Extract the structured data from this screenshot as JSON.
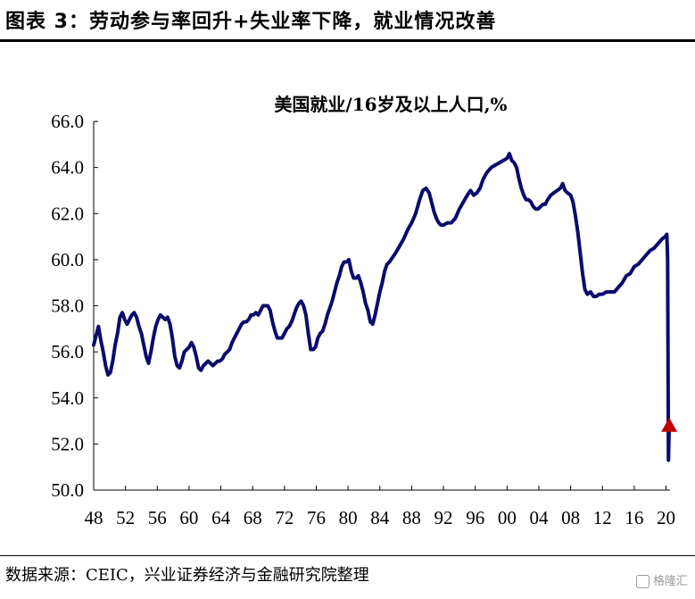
{
  "header": {
    "title": "图表 3：劳动参与率回升+失业率下降，就业情况改善"
  },
  "footer": {
    "source": "数据来源：CEIC，兴业证券经济与金融研究院整理",
    "watermark": "格隆汇"
  },
  "colors": {
    "line": "#0b0b6e",
    "marker": "#c00000"
  },
  "chart_data": {
    "type": "line",
    "title": "美国就业/16岁及以上人口,%",
    "xlabel": "",
    "ylabel": "",
    "x_tick_labels": [
      "48",
      "52",
      "56",
      "60",
      "64",
      "68",
      "72",
      "76",
      "80",
      "84",
      "88",
      "92",
      "96",
      "00",
      "04",
      "08",
      "12",
      "16",
      "20"
    ],
    "x_tick_years": [
      1948,
      1952,
      1956,
      1960,
      1964,
      1968,
      1972,
      1976,
      1980,
      1984,
      1988,
      1992,
      1996,
      2000,
      2004,
      2008,
      2012,
      2016,
      2020
    ],
    "xlim": [
      1948,
      2020.5
    ],
    "y_tick_labels": [
      "50.0",
      "52.0",
      "54.0",
      "56.0",
      "58.0",
      "60.0",
      "62.0",
      "64.0",
      "66.0"
    ],
    "ylim": [
      50,
      66
    ],
    "grid": false,
    "series": [
      {
        "points": [
          [
            1948.0,
            56.3
          ],
          [
            1948.3,
            56.7
          ],
          [
            1948.6,
            57.1
          ],
          [
            1948.9,
            56.5
          ],
          [
            1949.2,
            56.0
          ],
          [
            1949.5,
            55.4
          ],
          [
            1949.8,
            55.0
          ],
          [
            1950.1,
            55.1
          ],
          [
            1950.4,
            55.6
          ],
          [
            1950.7,
            56.3
          ],
          [
            1951.0,
            56.8
          ],
          [
            1951.3,
            57.5
          ],
          [
            1951.6,
            57.7
          ],
          [
            1951.9,
            57.4
          ],
          [
            1952.2,
            57.2
          ],
          [
            1952.5,
            57.4
          ],
          [
            1952.8,
            57.6
          ],
          [
            1953.1,
            57.7
          ],
          [
            1953.4,
            57.5
          ],
          [
            1953.7,
            57.1
          ],
          [
            1954.0,
            56.8
          ],
          [
            1954.3,
            56.3
          ],
          [
            1954.6,
            55.8
          ],
          [
            1954.9,
            55.5
          ],
          [
            1955.2,
            56.0
          ],
          [
            1955.5,
            56.6
          ],
          [
            1955.8,
            57.1
          ],
          [
            1956.1,
            57.4
          ],
          [
            1956.4,
            57.6
          ],
          [
            1956.7,
            57.5
          ],
          [
            1957.0,
            57.4
          ],
          [
            1957.3,
            57.5
          ],
          [
            1957.6,
            57.2
          ],
          [
            1957.9,
            56.6
          ],
          [
            1958.2,
            55.8
          ],
          [
            1958.5,
            55.4
          ],
          [
            1958.8,
            55.3
          ],
          [
            1959.1,
            55.6
          ],
          [
            1959.4,
            56.0
          ],
          [
            1959.7,
            56.1
          ],
          [
            1960.0,
            56.2
          ],
          [
            1960.3,
            56.4
          ],
          [
            1960.6,
            56.2
          ],
          [
            1960.9,
            55.8
          ],
          [
            1961.2,
            55.3
          ],
          [
            1961.5,
            55.2
          ],
          [
            1961.8,
            55.4
          ],
          [
            1962.1,
            55.5
          ],
          [
            1962.4,
            55.6
          ],
          [
            1962.7,
            55.5
          ],
          [
            1963.0,
            55.4
          ],
          [
            1963.3,
            55.5
          ],
          [
            1963.6,
            55.6
          ],
          [
            1963.9,
            55.6
          ],
          [
            1964.2,
            55.7
          ],
          [
            1964.5,
            55.9
          ],
          [
            1964.8,
            56.0
          ],
          [
            1965.1,
            56.1
          ],
          [
            1965.4,
            56.4
          ],
          [
            1965.7,
            56.6
          ],
          [
            1966.0,
            56.8
          ],
          [
            1966.3,
            57.0
          ],
          [
            1966.6,
            57.2
          ],
          [
            1966.9,
            57.3
          ],
          [
            1967.2,
            57.3
          ],
          [
            1967.5,
            57.4
          ],
          [
            1967.8,
            57.6
          ],
          [
            1968.1,
            57.6
          ],
          [
            1968.4,
            57.7
          ],
          [
            1968.7,
            57.6
          ],
          [
            1969.0,
            57.8
          ],
          [
            1969.3,
            58.0
          ],
          [
            1969.6,
            58.0
          ],
          [
            1969.9,
            58.0
          ],
          [
            1970.2,
            57.8
          ],
          [
            1970.5,
            57.3
          ],
          [
            1970.8,
            56.9
          ],
          [
            1971.1,
            56.6
          ],
          [
            1971.4,
            56.6
          ],
          [
            1971.7,
            56.6
          ],
          [
            1972.0,
            56.8
          ],
          [
            1972.3,
            57.0
          ],
          [
            1972.6,
            57.1
          ],
          [
            1972.9,
            57.3
          ],
          [
            1973.2,
            57.6
          ],
          [
            1973.5,
            57.9
          ],
          [
            1973.8,
            58.1
          ],
          [
            1974.1,
            58.2
          ],
          [
            1974.4,
            58.0
          ],
          [
            1974.7,
            57.6
          ],
          [
            1975.0,
            56.8
          ],
          [
            1975.3,
            56.1
          ],
          [
            1975.6,
            56.1
          ],
          [
            1975.9,
            56.2
          ],
          [
            1976.2,
            56.6
          ],
          [
            1976.5,
            56.8
          ],
          [
            1976.8,
            56.9
          ],
          [
            1977.1,
            57.2
          ],
          [
            1977.4,
            57.6
          ],
          [
            1977.7,
            57.9
          ],
          [
            1978.0,
            58.2
          ],
          [
            1978.3,
            58.6
          ],
          [
            1978.6,
            59.0
          ],
          [
            1978.9,
            59.3
          ],
          [
            1979.2,
            59.7
          ],
          [
            1979.5,
            59.9
          ],
          [
            1979.8,
            59.9
          ],
          [
            1980.1,
            60.0
          ],
          [
            1980.4,
            59.5
          ],
          [
            1980.7,
            59.2
          ],
          [
            1981.0,
            59.2
          ],
          [
            1981.3,
            59.3
          ],
          [
            1981.6,
            59.0
          ],
          [
            1981.9,
            58.6
          ],
          [
            1982.2,
            58.1
          ],
          [
            1982.5,
            57.8
          ],
          [
            1982.8,
            57.3
          ],
          [
            1983.1,
            57.2
          ],
          [
            1983.4,
            57.6
          ],
          [
            1983.7,
            58.1
          ],
          [
            1984.0,
            58.6
          ],
          [
            1984.3,
            59.0
          ],
          [
            1984.6,
            59.5
          ],
          [
            1984.9,
            59.8
          ],
          [
            1985.2,
            59.9
          ],
          [
            1986.0,
            60.3
          ],
          [
            1986.5,
            60.6
          ],
          [
            1987.0,
            60.9
          ],
          [
            1987.5,
            61.3
          ],
          [
            1988.0,
            61.6
          ],
          [
            1988.5,
            62.0
          ],
          [
            1989.0,
            62.6
          ],
          [
            1989.4,
            63.0
          ],
          [
            1989.8,
            63.1
          ],
          [
            1990.2,
            62.9
          ],
          [
            1990.5,
            62.5
          ],
          [
            1990.8,
            62.1
          ],
          [
            1991.1,
            61.8
          ],
          [
            1991.4,
            61.6
          ],
          [
            1991.7,
            61.5
          ],
          [
            1992.0,
            61.5
          ],
          [
            1992.5,
            61.6
          ],
          [
            1993.0,
            61.6
          ],
          [
            1993.5,
            61.8
          ],
          [
            1994.0,
            62.2
          ],
          [
            1994.5,
            62.5
          ],
          [
            1995.0,
            62.8
          ],
          [
            1995.4,
            63.0
          ],
          [
            1995.8,
            62.8
          ],
          [
            1996.2,
            62.9
          ],
          [
            1996.6,
            63.1
          ],
          [
            1997.0,
            63.5
          ],
          [
            1997.5,
            63.8
          ],
          [
            1998.0,
            64.0
          ],
          [
            1998.5,
            64.1
          ],
          [
            1999.0,
            64.2
          ],
          [
            1999.5,
            64.3
          ],
          [
            2000.0,
            64.4
          ],
          [
            2000.3,
            64.6
          ],
          [
            2000.6,
            64.3
          ],
          [
            2000.9,
            64.2
          ],
          [
            2001.2,
            64.0
          ],
          [
            2001.5,
            63.5
          ],
          [
            2001.8,
            63.1
          ],
          [
            2002.1,
            62.8
          ],
          [
            2002.4,
            62.6
          ],
          [
            2002.7,
            62.6
          ],
          [
            2003.0,
            62.5
          ],
          [
            2003.3,
            62.3
          ],
          [
            2003.6,
            62.2
          ],
          [
            2003.9,
            62.2
          ],
          [
            2004.2,
            62.3
          ],
          [
            2004.5,
            62.4
          ],
          [
            2004.8,
            62.4
          ],
          [
            2005.1,
            62.6
          ],
          [
            2005.5,
            62.8
          ],
          [
            2005.9,
            62.9
          ],
          [
            2006.3,
            63.0
          ],
          [
            2006.7,
            63.1
          ],
          [
            2007.0,
            63.3
          ],
          [
            2007.3,
            63.0
          ],
          [
            2007.6,
            62.9
          ],
          [
            2008.0,
            62.8
          ],
          [
            2008.3,
            62.5
          ],
          [
            2008.6,
            61.9
          ],
          [
            2008.9,
            61.2
          ],
          [
            2009.2,
            60.3
          ],
          [
            2009.5,
            59.4
          ],
          [
            2009.8,
            58.7
          ],
          [
            2010.1,
            58.5
          ],
          [
            2010.5,
            58.6
          ],
          [
            2010.9,
            58.4
          ],
          [
            2011.2,
            58.4
          ],
          [
            2011.6,
            58.5
          ],
          [
            2012.0,
            58.5
          ],
          [
            2012.5,
            58.6
          ],
          [
            2013.0,
            58.6
          ],
          [
            2013.5,
            58.6
          ],
          [
            2014.0,
            58.8
          ],
          [
            2014.5,
            59.0
          ],
          [
            2015.0,
            59.3
          ],
          [
            2015.5,
            59.4
          ],
          [
            2016.0,
            59.7
          ],
          [
            2016.5,
            59.8
          ],
          [
            2017.0,
            60.0
          ],
          [
            2017.5,
            60.2
          ],
          [
            2018.0,
            60.4
          ],
          [
            2018.5,
            60.5
          ],
          [
            2019.0,
            60.7
          ],
          [
            2019.5,
            60.9
          ],
          [
            2019.9,
            61.0
          ],
          [
            2020.1,
            61.1
          ],
          [
            2020.2,
            60.0
          ],
          [
            2020.3,
            51.3
          ],
          [
            2020.4,
            52.8
          ]
        ]
      }
    ],
    "annotation": {
      "type": "triangle-marker",
      "x": 2020.4,
      "y": 52.8
    }
  }
}
